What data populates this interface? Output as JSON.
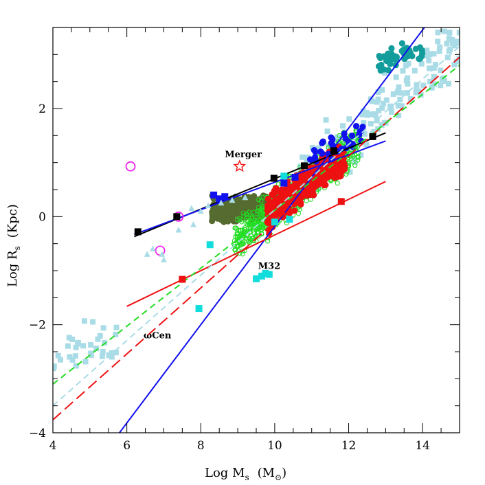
{
  "chart_data": {
    "type": "scatter",
    "title": "",
    "xlabel": "Log M",
    "xlabel_sub": "s",
    "xlabel_unit_open": "(M",
    "xlabel_unit_sub": "⊙",
    "xlabel_unit_close": ")",
    "ylabel": "Log R",
    "ylabel_sub": "s",
    "ylabel_unit": "(Kpc)",
    "xlim": [
      4,
      15
    ],
    "ylim": [
      -4,
      3.5
    ],
    "xticks": [
      4,
      6,
      8,
      10,
      12,
      14
    ],
    "xtick_labels": [
      "4",
      "6",
      "8",
      "10",
      "12",
      "14"
    ],
    "yticks": [
      -4,
      -2,
      0,
      2
    ],
    "ytick_labels": [
      "−4",
      "−2",
      "0",
      "2"
    ],
    "grid": false,
    "colors": {
      "lightblue": "#a9dce6",
      "teal": "#139c9c",
      "olive": "#556b2f",
      "green": "#22dd22",
      "red": "#ee1111",
      "blue": "#1111ee",
      "black": "#000000",
      "cyan": "#11dddd",
      "magenta": "#ee22ee"
    },
    "annotations": [
      {
        "text": "Merger",
        "x": 8.65,
        "y": 1.1
      },
      {
        "text": "M32",
        "x": 9.55,
        "y": -0.97
      },
      {
        "text": "ωCen",
        "x": 6.45,
        "y": -2.25
      }
    ],
    "series": [
      {
        "name": "merger-star",
        "kind": "star",
        "color": "red",
        "points": [
          [
            9.05,
            0.93
          ]
        ]
      },
      {
        "name": "magenta-open-circles",
        "kind": "open-circle",
        "color": "magenta",
        "points": [
          [
            6.1,
            0.93
          ],
          [
            7.4,
            0.0
          ],
          [
            6.9,
            -0.63
          ]
        ]
      },
      {
        "name": "black-squares",
        "kind": "square",
        "color": "black",
        "points": [
          [
            6.3,
            -0.28
          ],
          [
            7.35,
            0.0
          ],
          [
            9.98,
            0.71
          ],
          [
            10.8,
            0.94
          ],
          [
            11.6,
            1.22
          ],
          [
            12.65,
            1.48
          ]
        ]
      },
      {
        "name": "blue-squares",
        "kind": "square",
        "color": "blue",
        "points": [
          [
            8.35,
            0.4
          ],
          [
            8.5,
            0.33
          ],
          [
            8.65,
            0.37
          ],
          [
            10.25,
            0.62
          ],
          [
            10.55,
            0.73
          ]
        ]
      },
      {
        "name": "red-squares",
        "kind": "square",
        "color": "red",
        "points": [
          [
            7.5,
            -1.16
          ],
          [
            11.8,
            0.28
          ]
        ]
      },
      {
        "name": "cyan-squares",
        "kind": "square",
        "color": "cyan",
        "points": [
          [
            8.25,
            -0.52
          ],
          [
            7.95,
            -1.7
          ],
          [
            9.5,
            -1.15
          ],
          [
            9.65,
            -1.1
          ],
          [
            9.75,
            -1.05
          ],
          [
            9.85,
            -1.07
          ],
          [
            10.0,
            -0.1
          ],
          [
            10.4,
            -0.05
          ],
          [
            10.25,
            0.75
          ]
        ]
      },
      {
        "name": "light-blue-triangles",
        "kind": "triangle",
        "color": "lightblue",
        "points": [
          [
            6.55,
            -0.7
          ],
          [
            6.7,
            -0.6
          ],
          [
            6.95,
            -0.7
          ],
          [
            7.0,
            -0.8
          ],
          [
            7.4,
            -0.25
          ],
          [
            7.75,
            0.15
          ],
          [
            8.0,
            0.1
          ],
          [
            8.2,
            0.2
          ],
          [
            8.55,
            0.25
          ],
          [
            8.85,
            0.3
          ],
          [
            7.8,
            -0.15
          ],
          [
            9.2,
            0.35
          ]
        ]
      }
    ],
    "fit_lines": [
      {
        "name": "black-line",
        "color": "black",
        "style": "solid",
        "points": [
          [
            6.2,
            -0.37
          ],
          [
            13.0,
            1.55
          ]
        ]
      },
      {
        "name": "blue-line-steep",
        "color": "blue",
        "style": "solid",
        "points": [
          [
            5.8,
            -4.0
          ],
          [
            14.05,
            3.5
          ]
        ]
      },
      {
        "name": "blue-line-shallow",
        "color": "blue",
        "style": "solid",
        "points": [
          [
            6.2,
            -0.33
          ],
          [
            13.0,
            1.4
          ]
        ]
      },
      {
        "name": "red-line-solid",
        "color": "red",
        "style": "solid",
        "points": [
          [
            6.0,
            -1.66
          ],
          [
            13.0,
            0.65
          ]
        ]
      },
      {
        "name": "red-line-dashed",
        "color": "red",
        "style": "longdash",
        "points": [
          [
            4.0,
            -3.76
          ],
          [
            15.0,
            2.95
          ]
        ]
      },
      {
        "name": "green-line-dashed",
        "color": "green",
        "style": "dash",
        "points": [
          [
            4.0,
            -3.1
          ],
          [
            15.0,
            2.8
          ]
        ]
      },
      {
        "name": "lightblue-line-dashed",
        "color": "lightblue",
        "style": "dash",
        "points": [
          [
            4.0,
            -3.5
          ],
          [
            15.0,
            3.15
          ]
        ]
      }
    ],
    "clouds": [
      {
        "name": "olive-cloud",
        "color": "olive",
        "shape": "circle",
        "count": 380,
        "x": [
          8.3,
          10.2
        ],
        "y": [
          -0.55,
          0.85
        ],
        "slope": 0.05,
        "spread": 0.32
      },
      {
        "name": "green-cloud",
        "color": "green",
        "shape": "ring",
        "count": 650,
        "x": [
          8.9,
          12.3
        ],
        "y": [
          -0.7,
          1.6
        ],
        "slope": 0.55,
        "spread": 0.55
      },
      {
        "name": "red-cloud",
        "color": "red",
        "shape": "circle",
        "count": 420,
        "x": [
          9.8,
          11.9
        ],
        "y": [
          -0.45,
          1.6
        ],
        "slope": 0.5,
        "spread": 0.42
      },
      {
        "name": "blue-cloud",
        "color": "blue",
        "shape": "circle",
        "count": 35,
        "x": [
          10.9,
          12.4
        ],
        "y": [
          0.9,
          1.7
        ],
        "slope": 0.35,
        "spread": 0.35
      },
      {
        "name": "teal-cloud",
        "color": "teal",
        "shape": "circle",
        "count": 45,
        "x": [
          12.8,
          14.0
        ],
        "y": [
          2.65,
          3.25
        ],
        "slope": 0.15,
        "spread": 0.3
      },
      {
        "name": "lightblue-galaxies",
        "color": "lightblue",
        "shape": "square",
        "count": 150,
        "x": [
          10.5,
          15.0
        ],
        "y": [
          0.4,
          3.45
        ],
        "slope": 0.6,
        "spread": 0.9
      },
      {
        "name": "lightblue-clusters",
        "color": "lightblue",
        "shape": "square",
        "count": 35,
        "x": [
          4.0,
          5.8
        ],
        "y": [
          -2.95,
          -1.85
        ],
        "slope": 0.2,
        "spread": 0.55
      }
    ]
  }
}
